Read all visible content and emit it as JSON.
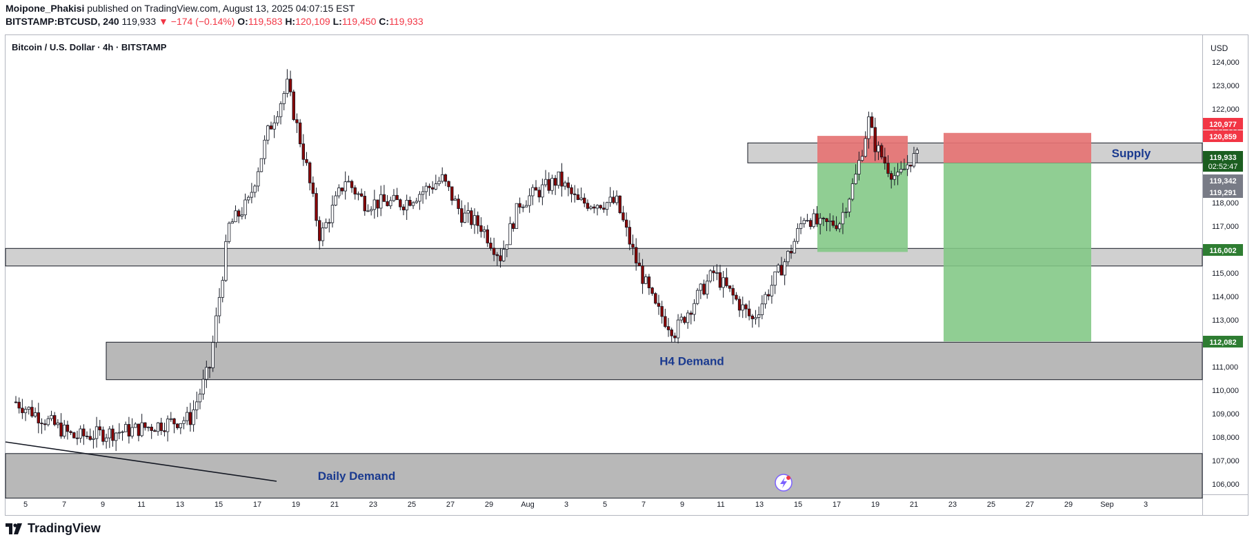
{
  "header": {
    "author": "Moipone_Phakisi",
    "published_text": "published on TradingView.com, August 13, 2025 04:07:15 EST",
    "symbol": "BITSTAMP:BTCUSD, 240",
    "last": "119,933",
    "change": "−174 (−0.14%)",
    "o_label": "O:",
    "o": "119,583",
    "h_label": "H:",
    "h": "120,109",
    "l_label": "L:",
    "l": "119,450",
    "c_label": "C:",
    "c": "119,933"
  },
  "footer": {
    "brand": "TradingView"
  },
  "chart_data": {
    "type": "candlestick",
    "title": "Bitcoin / U.S. Dollar · 4h · BITSTAMP",
    "currency": "USD",
    "ylim": [
      105500,
      124500
    ],
    "y_ticks": [
      "106,000",
      "107,000",
      "108,000",
      "109,000",
      "110,000",
      "111,000",
      "112,000",
      "113,000",
      "114,000",
      "115,000",
      "116,000",
      "117,000",
      "118,000",
      "119,000",
      "120,000",
      "121,000",
      "122,000",
      "123,000",
      "124,000"
    ],
    "x_ticks": [
      "5",
      "7",
      "9",
      "11",
      "13",
      "15",
      "17",
      "19",
      "21",
      "23",
      "25",
      "27",
      "29",
      "Aug",
      "3",
      "5",
      "7",
      "9",
      "11",
      "13",
      "15",
      "17",
      "19",
      "21",
      "23",
      "25",
      "27",
      "29",
      "Sep",
      "3"
    ],
    "price_path": [
      [
        0,
        109500
      ],
      [
        3,
        108000
      ],
      [
        6,
        108300
      ],
      [
        9,
        108800
      ],
      [
        10,
        111000
      ],
      [
        11,
        117000
      ],
      [
        12,
        118000
      ],
      [
        13,
        121000
      ],
      [
        14,
        123000
      ],
      [
        15,
        119500
      ],
      [
        15.7,
        116500
      ],
      [
        17,
        119000
      ],
      [
        18,
        118000
      ],
      [
        19,
        118000
      ],
      [
        20,
        118000
      ],
      [
        22,
        119000
      ],
      [
        23,
        117500
      ],
      [
        24,
        117000
      ],
      [
        25,
        115700
      ],
      [
        26,
        118000
      ],
      [
        27,
        118500
      ],
      [
        28,
        119000
      ],
      [
        29,
        118000
      ],
      [
        31,
        118000
      ],
      [
        32,
        115500
      ],
      [
        33,
        113500
      ],
      [
        34,
        112500
      ],
      [
        35,
        113800
      ],
      [
        36,
        115000
      ],
      [
        37,
        114000
      ],
      [
        38,
        113000
      ],
      [
        39,
        114500
      ],
      [
        40,
        116000
      ],
      [
        40.7,
        117500
      ],
      [
        41.5,
        117000
      ],
      [
        42.5,
        117200
      ],
      [
        43.3,
        119000
      ],
      [
        44,
        121500
      ],
      [
        44.3,
        120500
      ],
      [
        45,
        119500
      ],
      [
        45.5,
        119000
      ],
      [
        46.2,
        119900
      ],
      [
        46.6,
        119933
      ]
    ],
    "zones": [
      {
        "name": "Supply",
        "from": 119700,
        "to": 120550
      },
      {
        "name": "",
        "from": 115300,
        "to": 116050
      },
      {
        "name": "H4 Demand",
        "from": 110450,
        "to": 112050
      },
      {
        "name": "Daily Demand",
        "from": 105400,
        "to": 107300
      }
    ],
    "trades": [
      {
        "entry": 119700,
        "stop": 120850,
        "target": 115900
      },
      {
        "entry": 119700,
        "stop": 120977,
        "target": 112082
      }
    ],
    "price_labels": [
      {
        "text": "120,977",
        "color": "#f23645",
        "value": 120977
      },
      {
        "text": "120,859",
        "color": "#f23645",
        "value": 120859
      },
      {
        "text": "119,933",
        "color": "#1b5e20",
        "value": 119933,
        "sub": "02:52:47"
      },
      {
        "text": "119,342",
        "color": "#787b86",
        "value": 119342
      },
      {
        "text": "119,291",
        "color": "#787b86",
        "value": 119291
      },
      {
        "text": "116,002",
        "color": "#2e7d32",
        "value": 116002
      },
      {
        "text": "112,082",
        "color": "#2e7d32",
        "value": 112082
      }
    ],
    "trendline": [
      [
        0,
        107800
      ],
      [
        8,
        106300
      ]
    ],
    "colors": {
      "up": "#ffffff",
      "down": "#8b0000",
      "wick": "#131722",
      "supply_fill": "#d0d0d0",
      "demand_fill": "#b8b8b8",
      "stop_fill": "#e57373",
      "target_fill": "#81c784",
      "label_text": "#1a3a8f"
    }
  }
}
